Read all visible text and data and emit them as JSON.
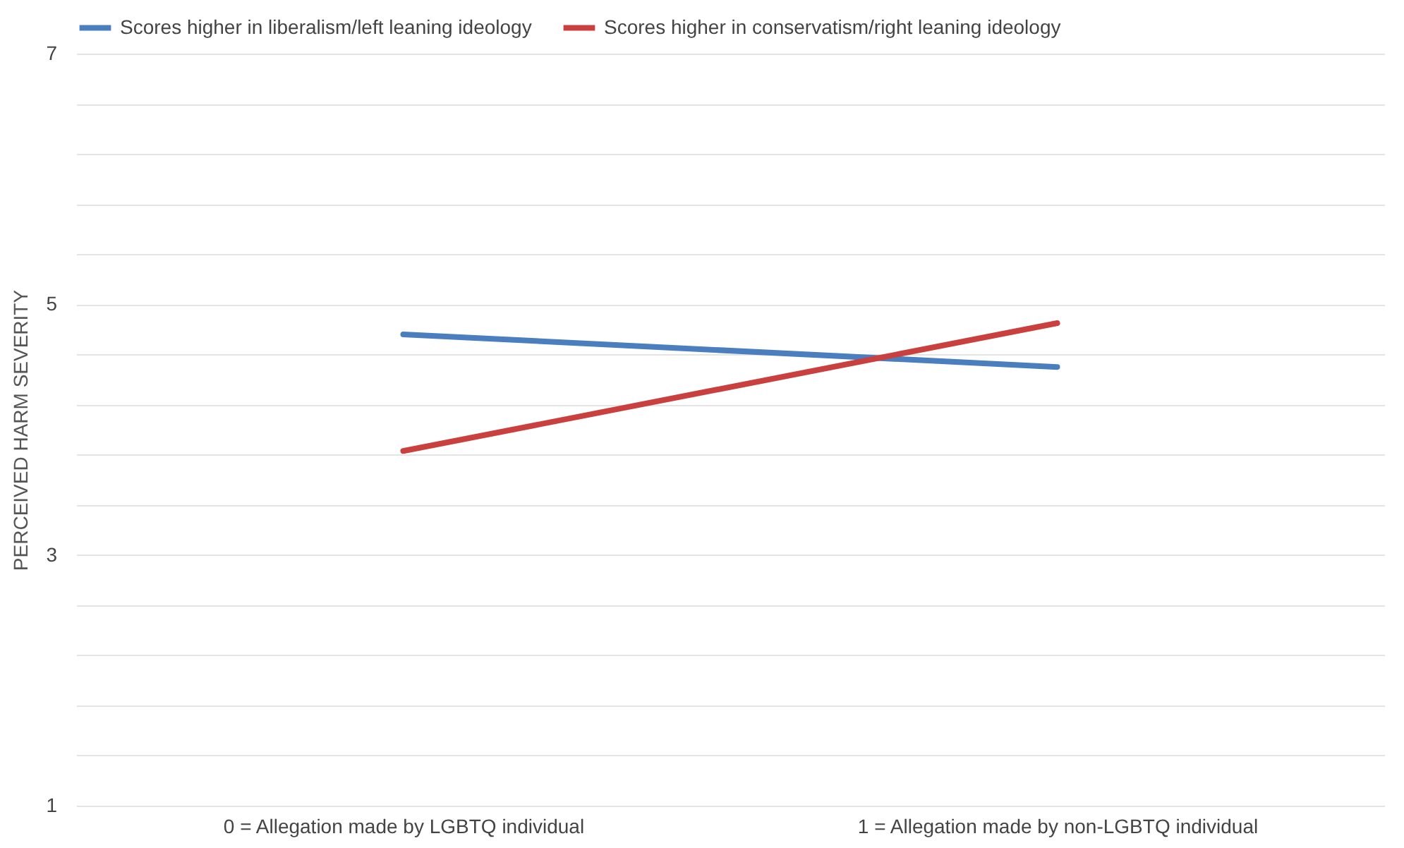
{
  "chart_data": {
    "type": "line",
    "ylabel": "PERCEIVED HARM SEVERITY",
    "categories": [
      "0 = Allegation made by LGBTQ individual",
      "1 = Allegation made by non-LGBTQ individual"
    ],
    "series": [
      {
        "name": "Scores higher in liberalism/left leaning ideology",
        "color": "#4a7ebf",
        "values": [
          4.76,
          4.5
        ]
      },
      {
        "name": "Scores higher in conservatism/right leaning ideology",
        "color": "#c9403e",
        "values": [
          3.83,
          4.85
        ]
      }
    ],
    "ylim": [
      1,
      7
    ],
    "yticks": [
      1,
      {
        "value": 1.4,
        "label": null
      },
      {
        "value": 1.8,
        "label": null
      },
      {
        "value": 2.2,
        "label": null
      },
      {
        "value": 2.6,
        "label": null
      },
      3,
      {
        "value": 3.4,
        "label": null
      },
      {
        "value": 3.8,
        "label": null
      },
      {
        "value": 4.2,
        "label": null
      },
      {
        "value": 4.6,
        "label": null
      },
      5,
      {
        "value": 5.4,
        "label": null
      },
      {
        "value": 5.8,
        "label": null
      },
      {
        "value": 6.2,
        "label": null
      },
      {
        "value": 6.6,
        "label": null
      },
      7
    ],
    "grid": "y",
    "legend": "top",
    "marker": "none",
    "line_style": "solid"
  }
}
